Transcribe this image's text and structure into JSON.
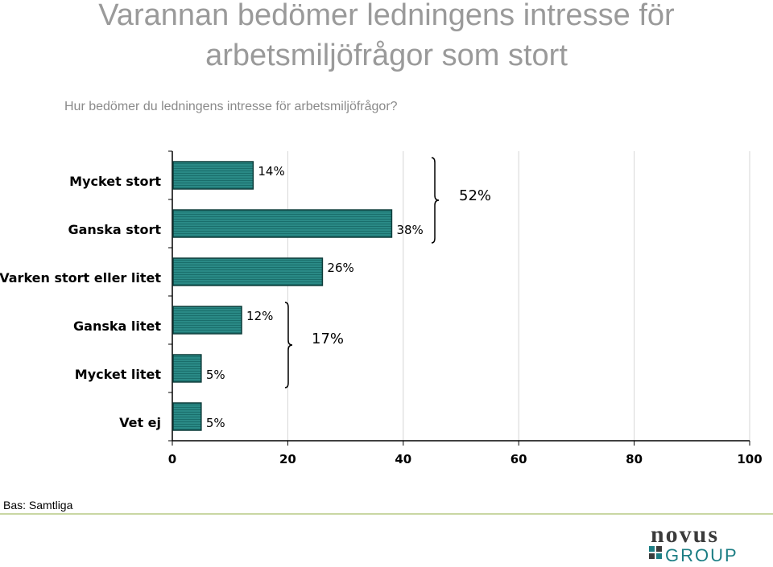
{
  "title_line1": "Varannan bedömer ledningens intresse för",
  "title_line2": "arbetsmiljöfrågor som stort",
  "subtitle": "Hur bedömer du ledningens intresse för arbetsmiljöfrågor?",
  "base_note": "Bas: Samtliga",
  "logo": {
    "word1": "novus",
    "word2": "GROUP"
  },
  "colors": {
    "bar_fill": "#2a8a86",
    "bar_stroke": "#0d3b39",
    "logo_dark": "#3b3b3b",
    "logo_teal": "#1c7e84"
  },
  "chart_data": {
    "type": "bar",
    "orientation": "horizontal",
    "categories": [
      "Mycket stort",
      "Ganska stort",
      "Varken stort eller litet",
      "Ganska litet",
      "Mycket litet",
      "Vet ej"
    ],
    "values": [
      14,
      38,
      26,
      12,
      5,
      5
    ],
    "value_labels": [
      "14%",
      "38%",
      "26%",
      "12%",
      "5%",
      "5%"
    ],
    "xlim": [
      0,
      100
    ],
    "xticks": [
      0,
      20,
      40,
      60,
      80,
      100
    ],
    "grid": "vertical",
    "groups": [
      {
        "label": "52%",
        "categories": [
          "Mycket stort",
          "Ganska stort"
        ]
      },
      {
        "label": "17%",
        "categories": [
          "Ganska litet",
          "Mycket litet"
        ]
      }
    ]
  }
}
